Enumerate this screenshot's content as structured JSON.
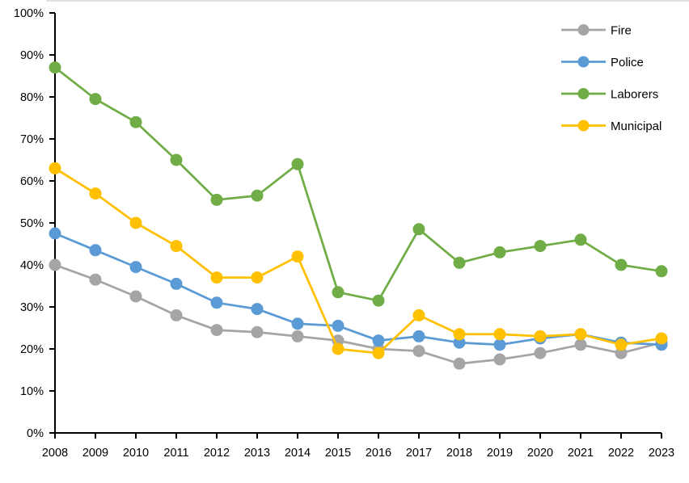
{
  "chart": {
    "top_border_color": "#d9d9d9",
    "axis_color": "#000000",
    "label_color": "#000000",
    "background": "#ffffff"
  },
  "chart_data": {
    "type": "line",
    "title": "",
    "xlabel": "",
    "ylabel": "",
    "categories": [
      "2008",
      "2009",
      "2010",
      "2011",
      "2012",
      "2013",
      "2014",
      "2015",
      "2016",
      "2017",
      "2018",
      "2019",
      "2020",
      "2021",
      "2022",
      "2023"
    ],
    "series": [
      {
        "name": "Fire",
        "color": "#A5A5A5",
        "values": [
          40,
          36.5,
          32.5,
          28,
          24.5,
          24,
          23,
          22,
          20,
          19.5,
          16.5,
          17.5,
          19,
          21,
          19,
          21.5
        ]
      },
      {
        "name": "Police",
        "color": "#5B9BD5",
        "values": [
          47.5,
          43.5,
          39.5,
          35.5,
          31,
          29.5,
          26,
          25.5,
          22,
          23,
          21.5,
          21,
          22.5,
          23.5,
          21.5,
          21
        ]
      },
      {
        "name": "Laborers",
        "color": "#70AD47",
        "values": [
          87,
          79.5,
          74,
          65,
          55.5,
          56.5,
          64,
          33.5,
          31.5,
          48.5,
          40.5,
          43,
          44.5,
          46,
          40,
          38.5
        ]
      },
      {
        "name": "Municipal",
        "color": "#FFC000",
        "values": [
          63,
          57,
          50,
          44.5,
          37,
          37,
          42,
          20,
          19,
          28,
          23.5,
          23.5,
          23,
          23.5,
          21,
          22.5
        ]
      }
    ],
    "ylim": [
      0,
      100
    ],
    "y_tick_step": 10,
    "y_tick_format": "{v}%",
    "grid": false,
    "legend_position": "top-right",
    "legend_entries": [
      "Fire",
      "Police",
      "Laborers",
      "Municipal"
    ]
  }
}
